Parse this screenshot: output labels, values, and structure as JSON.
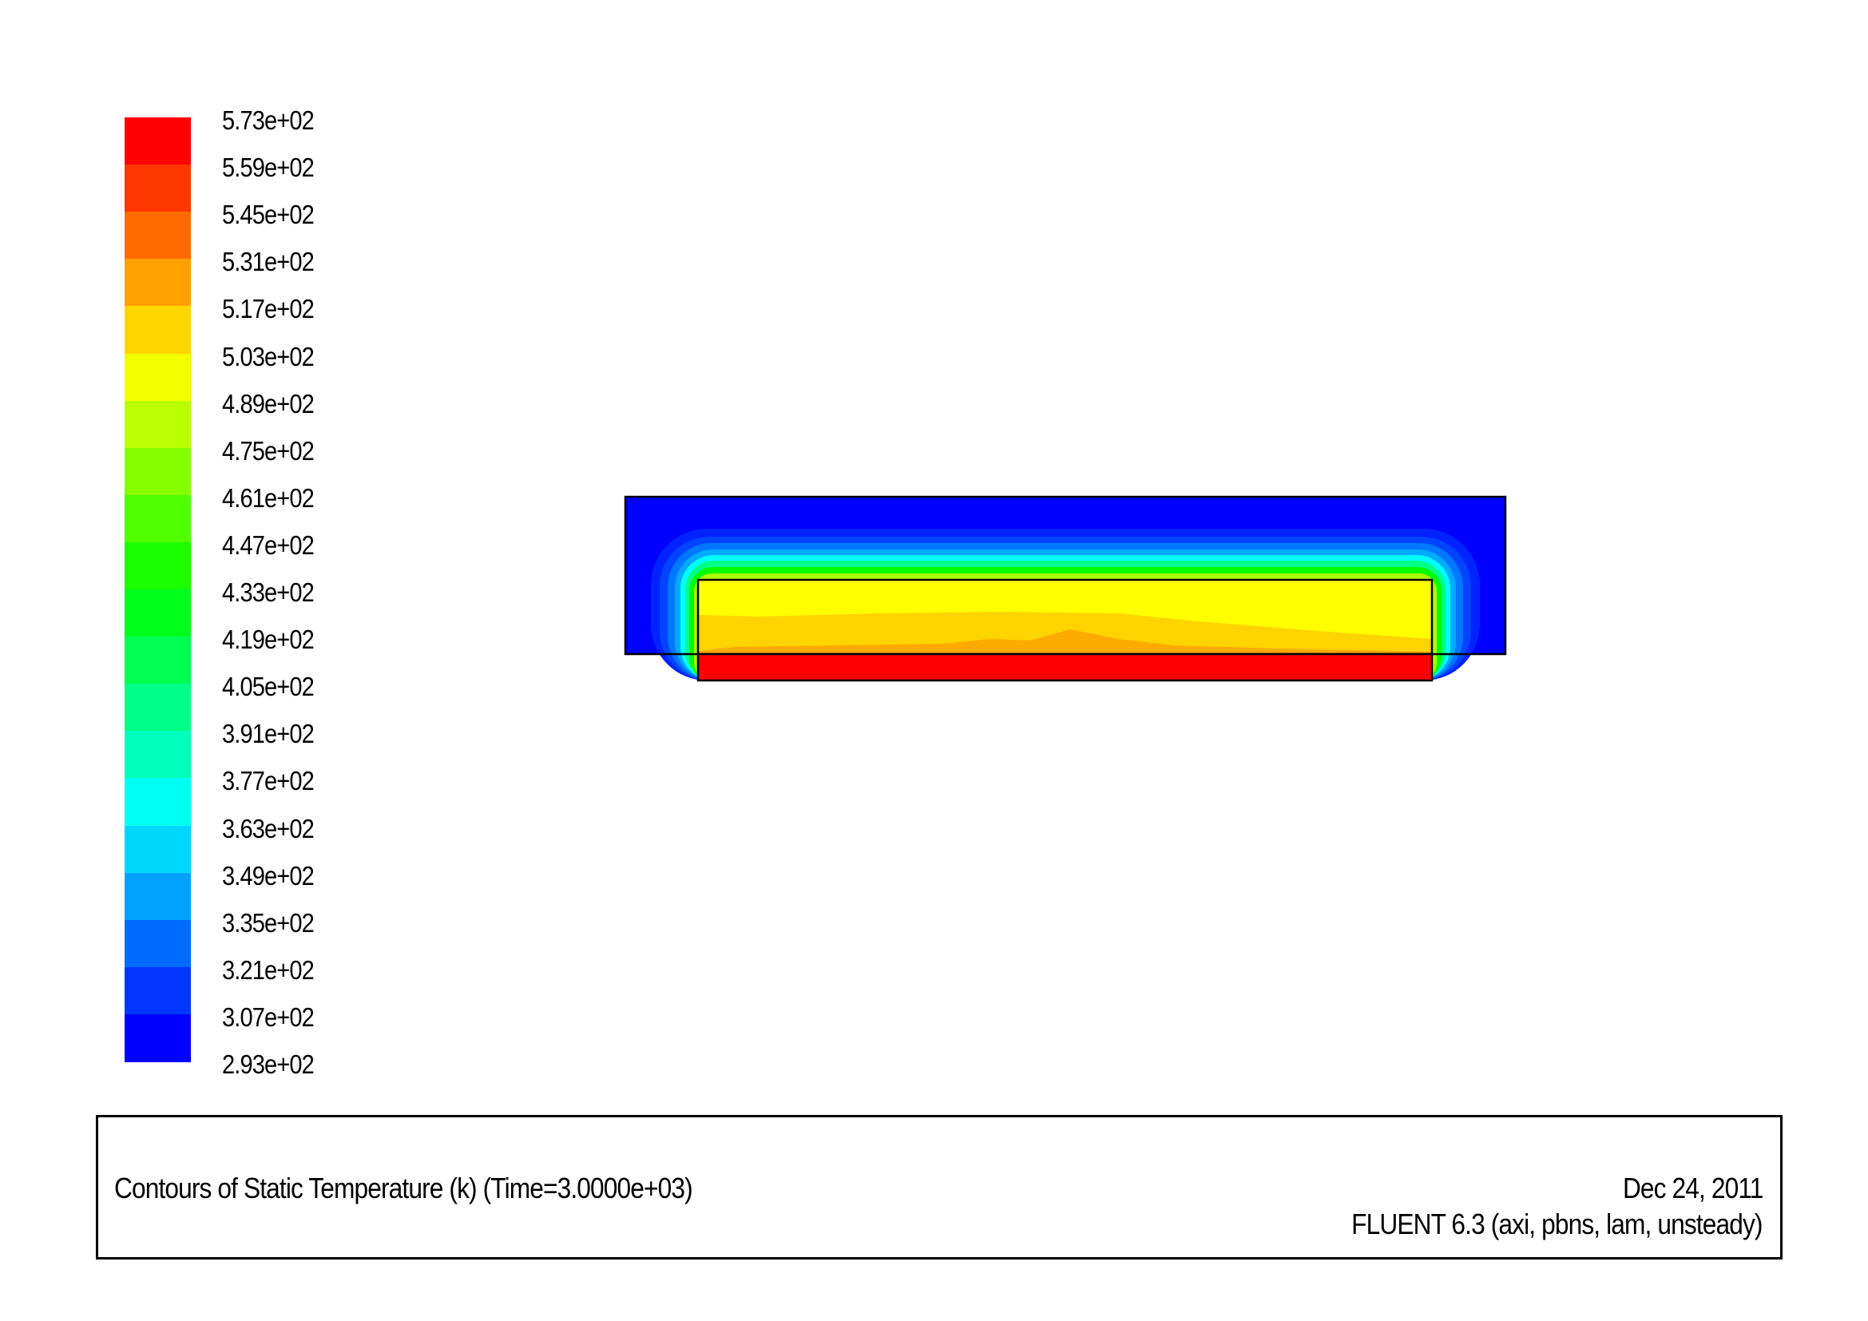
{
  "chart_data": {
    "type": "heatmap",
    "title": "Contours of Static Temperature (k)  (Time=3.0000e+03)",
    "colorbar": {
      "levels": [
        "5.73e+02",
        "5.59e+02",
        "5.45e+02",
        "5.31e+02",
        "5.17e+02",
        "5.03e+02",
        "4.89e+02",
        "4.75e+02",
        "4.61e+02",
        "4.47e+02",
        "4.33e+02",
        "4.19e+02",
        "4.05e+02",
        "3.91e+02",
        "3.77e+02",
        "3.63e+02",
        "3.49e+02",
        "3.35e+02",
        "3.21e+02",
        "3.07e+02",
        "2.93e+02"
      ],
      "min": 293,
      "max": 573,
      "colormap": "rainbow (blue to red)",
      "placement": "left"
    },
    "regions": [
      {
        "name": "outer domain",
        "temperature_range": [
          293,
          440
        ],
        "color": "#0000ff"
      },
      {
        "name": "inner block",
        "temperature_range": [
          475,
          520
        ],
        "color": "#ffff00"
      },
      {
        "name": "heater strip",
        "temperature": 573,
        "color": "#ff0000"
      }
    ]
  },
  "footer": {
    "title": "Contours of Static Temperature (k)  (Time=3.0000e+03)",
    "date": "Dec 24, 2011",
    "solver": "FLUENT 6.3 (axi, pbns, lam, unsteady)"
  }
}
